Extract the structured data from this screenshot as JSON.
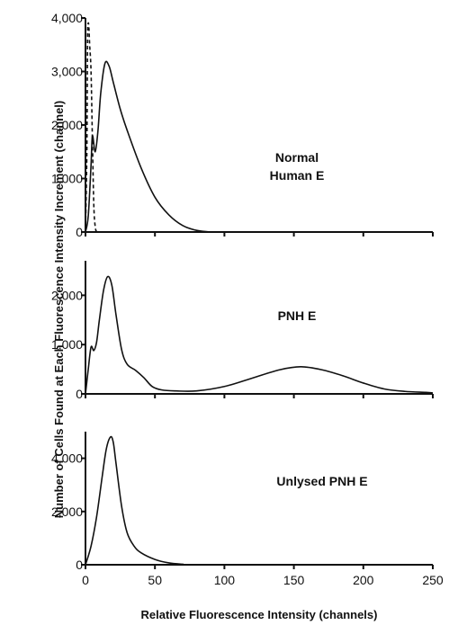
{
  "chart_data": {
    "type": "line",
    "xlabel": "Relative Fluorescence Intensity (channels)",
    "ylabel": "Number of Cells Found at Each Fluorescence Intensity Increment (channel)",
    "xlim": [
      0,
      250
    ],
    "x_ticks": [
      "0",
      "50",
      "100",
      "150",
      "200",
      "250"
    ],
    "grid": false,
    "panels": [
      {
        "label": "Normal\nHuman E",
        "ylim": [
          0,
          4000
        ],
        "y_ticks": [
          "0",
          "1,000",
          "2,000",
          "3,000",
          "4,000"
        ],
        "series": [
          {
            "style": "solid",
            "x": [
              0,
              2,
              4,
              5,
              7,
              9,
              11,
              14,
              17,
              20,
              25,
              30,
              40,
              50,
              60,
              70,
              80,
              90,
              100,
              250
            ],
            "y": [
              0,
              300,
              1250,
              1800,
              1500,
              1900,
              2600,
              3150,
              3100,
              2800,
              2300,
              1900,
              1200,
              650,
              320,
              120,
              30,
              0,
              0,
              0
            ]
          },
          {
            "style": "dashed",
            "x": [
              0,
              1,
              1.5,
              2,
              2.5,
              3,
              4,
              5,
              6,
              7,
              8
            ],
            "y": [
              0,
              1500,
              3600,
              3900,
              3800,
              3500,
              3000,
              1700,
              500,
              100,
              0
            ]
          }
        ]
      },
      {
        "label": "PNH E",
        "ylim": [
          0,
          2700
        ],
        "y_ticks": [
          "0",
          "1,000",
          "2,000"
        ],
        "series": [
          {
            "style": "solid",
            "x": [
              0,
              2,
              4,
              6,
              8,
              10,
              13,
              16,
              19,
              22,
              26,
              30,
              36,
              42,
              48,
              55,
              65,
              80,
              100,
              120,
              140,
              155,
              170,
              185,
              200,
              215,
              230,
              245,
              250
            ],
            "y": [
              0,
              500,
              950,
              880,
              1050,
              1500,
              2100,
              2380,
              2200,
              1600,
              900,
              600,
              480,
              330,
              150,
              80,
              60,
              60,
              150,
              320,
              490,
              550,
              490,
              370,
              220,
              100,
              50,
              30,
              20
            ]
          }
        ]
      },
      {
        "label": "Unlysed PNH E",
        "ylim": [
          0,
          5000
        ],
        "y_ticks": [
          "0",
          "2,000",
          "4,000"
        ],
        "series": [
          {
            "style": "solid",
            "x": [
              0,
              4,
              8,
              12,
              15,
              18,
              20,
              22,
              26,
              30,
              35,
              40,
              50,
              60,
              70,
              80,
              250
            ],
            "y": [
              0,
              700,
              1800,
              3300,
              4350,
              4800,
              4600,
              3800,
              2200,
              1200,
              700,
              450,
              200,
              70,
              20,
              0,
              0
            ]
          }
        ]
      }
    ]
  }
}
